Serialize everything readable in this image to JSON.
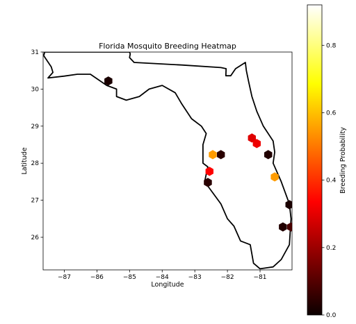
{
  "chart_data": {
    "type": "heatmap",
    "title": "Florida Mosquito Breeding Heatmap",
    "xlabel": "Longitude",
    "ylabel": "Latitude",
    "xlim": [
      -87.65,
      -80.02
    ],
    "ylim": [
      25.12,
      31.0
    ],
    "xticks": [
      -87,
      -86,
      -85,
      -84,
      -83,
      -82,
      -81
    ],
    "xtick_labels": [
      "−87",
      "−86",
      "−85",
      "−84",
      "−83",
      "−82",
      "−81"
    ],
    "yticks": [
      26,
      27,
      28,
      29,
      30,
      31
    ],
    "ytick_labels": [
      "26",
      "27",
      "28",
      "29",
      "30",
      "31"
    ],
    "colorbar": {
      "label": "Breeding Probability",
      "range": [
        0.0,
        0.92
      ],
      "ticks": [
        0.0,
        0.2,
        0.4,
        0.6,
        0.8
      ],
      "tick_labels": [
        "0.0",
        "0.2",
        "0.4",
        "0.6",
        "0.8"
      ],
      "colormap": "hot"
    },
    "cells": [
      {
        "lon": -85.65,
        "lat": 30.22,
        "value": 0.02
      },
      {
        "lon": -81.25,
        "lat": 28.68,
        "value": 0.28
      },
      {
        "lon": -81.1,
        "lat": 28.53,
        "value": 0.3
      },
      {
        "lon": -80.75,
        "lat": 28.23,
        "value": 0.03
      },
      {
        "lon": -82.45,
        "lat": 28.23,
        "value": 0.55
      },
      {
        "lon": -82.2,
        "lat": 28.23,
        "value": 0.04
      },
      {
        "lon": -82.55,
        "lat": 27.78,
        "value": 0.32
      },
      {
        "lon": -82.6,
        "lat": 27.48,
        "value": 0.04
      },
      {
        "lon": -80.55,
        "lat": 27.63,
        "value": 0.55
      },
      {
        "lon": -80.1,
        "lat": 26.88,
        "value": 0.02
      },
      {
        "lon": -80.3,
        "lat": 26.28,
        "value": 0.03
      },
      {
        "lon": -80.05,
        "lat": 26.28,
        "value": 0.08
      }
    ],
    "outline": [
      [
        -87.63,
        30.9
      ],
      [
        -87.6,
        31.0
      ],
      [
        -85.0,
        31.0
      ],
      [
        -84.98,
        30.95
      ],
      [
        -85.0,
        30.85
      ],
      [
        -84.86,
        30.72
      ],
      [
        -83.4,
        30.65
      ],
      [
        -82.2,
        30.58
      ],
      [
        -82.04,
        30.55
      ],
      [
        -82.05,
        30.36
      ],
      [
        -81.9,
        30.36
      ],
      [
        -81.75,
        30.55
      ],
      [
        -81.45,
        30.72
      ],
      [
        -81.42,
        30.5
      ],
      [
        -81.35,
        30.2
      ],
      [
        -81.25,
        29.8
      ],
      [
        -81.1,
        29.4
      ],
      [
        -80.9,
        29.0
      ],
      [
        -80.6,
        28.6
      ],
      [
        -80.55,
        28.3
      ],
      [
        -80.6,
        28.0
      ],
      [
        -80.35,
        27.5
      ],
      [
        -80.1,
        26.9
      ],
      [
        -80.05,
        26.5
      ],
      [
        -80.1,
        25.8
      ],
      [
        -80.35,
        25.4
      ],
      [
        -80.6,
        25.2
      ],
      [
        -81.0,
        25.15
      ],
      [
        -81.2,
        25.3
      ],
      [
        -81.3,
        25.8
      ],
      [
        -81.6,
        25.9
      ],
      [
        -81.8,
        26.3
      ],
      [
        -82.0,
        26.5
      ],
      [
        -82.2,
        26.9
      ],
      [
        -82.45,
        27.2
      ],
      [
        -82.7,
        27.5
      ],
      [
        -82.6,
        27.9
      ],
      [
        -82.75,
        28.0
      ],
      [
        -82.75,
        28.5
      ],
      [
        -82.65,
        28.8
      ],
      [
        -82.8,
        29.0
      ],
      [
        -83.1,
        29.2
      ],
      [
        -83.4,
        29.6
      ],
      [
        -83.6,
        29.9
      ],
      [
        -84.0,
        30.1
      ],
      [
        -84.4,
        30.0
      ],
      [
        -84.7,
        29.8
      ],
      [
        -85.1,
        29.7
      ],
      [
        -85.4,
        29.8
      ],
      [
        -85.4,
        30.0
      ],
      [
        -85.7,
        30.1
      ],
      [
        -86.2,
        30.4
      ],
      [
        -86.6,
        30.4
      ],
      [
        -87.0,
        30.35
      ],
      [
        -87.5,
        30.3
      ],
      [
        -87.35,
        30.45
      ],
      [
        -87.4,
        30.6
      ],
      [
        -87.63,
        30.9
      ]
    ]
  }
}
